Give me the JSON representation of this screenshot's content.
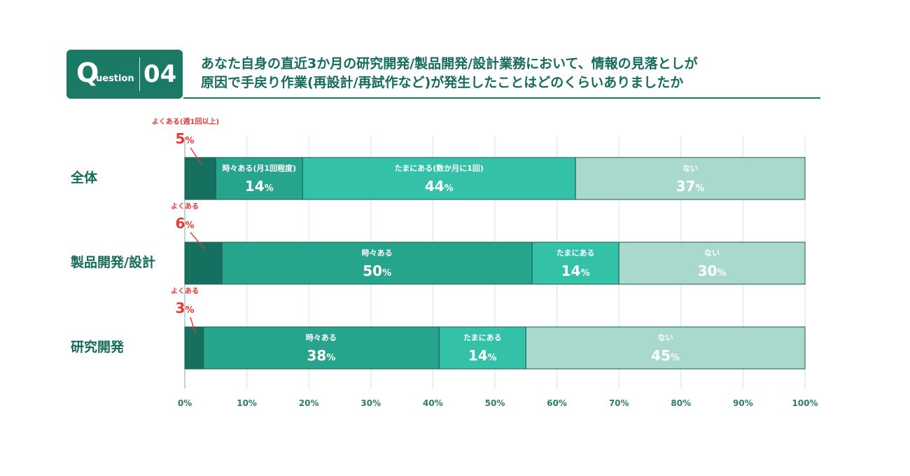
{
  "header": {
    "badge_q": "Q",
    "badge_uestion": "uestion",
    "badge_number": "04",
    "title_line1": "あなた自身の直近3か月の研究開発/製品開発/設計業務において、情報の見落としが",
    "title_line2": "原因で手戻り作業(再設計/再試作など)が発生したことはどのくらいありましたか"
  },
  "colors": {
    "yokuaru": "#15705f",
    "tokidoki": "#27a48c",
    "tamani": "#33c2a8",
    "nai": "#a9d8cd",
    "red": "#e53935",
    "grid": "#cfe6e0",
    "title": "#156c5b"
  },
  "chart_data": {
    "type": "bar",
    "orientation": "horizontal-stacked-100",
    "xlim": [
      0,
      100
    ],
    "x_ticks": [
      "0%",
      "10%",
      "20%",
      "30%",
      "40%",
      "50%",
      "60%",
      "70%",
      "80%",
      "90%",
      "100%"
    ],
    "grid": true,
    "rows": [
      {
        "label": "全体",
        "segments": [
          {
            "key": "yokuaru",
            "label": "よくある(週1回以上)",
            "value": 5
          },
          {
            "key": "tokidoki",
            "label": "時々ある(月1回程度)",
            "value": 14
          },
          {
            "key": "tamani",
            "label": "たまにある(数か月に1回)",
            "value": 44
          },
          {
            "key": "nai",
            "label": "ない",
            "value": 37
          }
        ]
      },
      {
        "label": "製品開発/設計",
        "segments": [
          {
            "key": "yokuaru",
            "label": "よくある",
            "value": 6
          },
          {
            "key": "tokidoki",
            "label": "時々ある",
            "value": 50
          },
          {
            "key": "tamani",
            "label": "たまにある",
            "value": 14
          },
          {
            "key": "nai",
            "label": "ない",
            "value": 30
          }
        ]
      },
      {
        "label": "研究開発",
        "segments": [
          {
            "key": "yokuaru",
            "label": "よくある",
            "value": 3
          },
          {
            "key": "tokidoki",
            "label": "時々ある",
            "value": 38
          },
          {
            "key": "tamani",
            "label": "たまにある",
            "value": 14
          },
          {
            "key": "nai",
            "label": "ない",
            "value": 45
          }
        ]
      }
    ]
  }
}
